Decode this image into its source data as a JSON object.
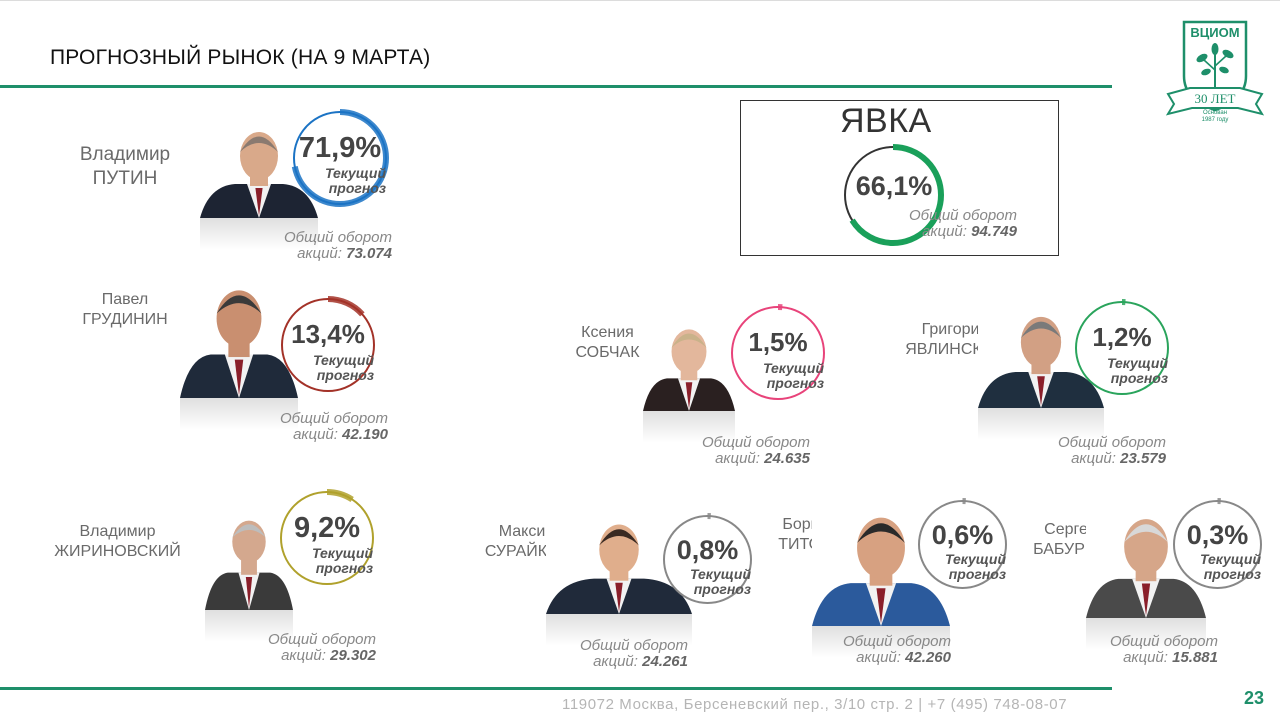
{
  "title": "ПРОГНОЗНЫЙ РЫНОК (НА 9 МАРТА)",
  "footer": {
    "address": "119072 Москва, Берсеневский пер., 3/10 стр. 2  |  +7 (495) 748-08-07",
    "page_number": "23"
  },
  "logo": {
    "name": "ВЦИОМ",
    "ribbon": "30 ЛЕТ",
    "founded": "Основан",
    "year": "1987 году"
  },
  "labels": {
    "current": "Текущий",
    "forecast": "прогноз",
    "turnover_line1": "Общий оборот",
    "turnover_line2_prefix": "акций:"
  },
  "turnout": {
    "title": "ЯВКА",
    "percent": "66,1%",
    "value": 0.661,
    "turnover_line1": "Общий оборот",
    "turnover_line2": "акций:",
    "turnover_value": "94.749",
    "color": "#1aa05a"
  },
  "candidates": [
    {
      "first": "Владимир",
      "last": "ПУТИН",
      "percent": "71,9%",
      "value": 0.719,
      "turnover": "73.074",
      "color": "#1b73c4"
    },
    {
      "first": "Павел",
      "last": "ГРУДИНИН",
      "percent": "13,4%",
      "value": 0.134,
      "turnover": "42.190",
      "color": "#a33228"
    },
    {
      "first": "Ксения",
      "last": "СОБЧАК",
      "percent": "1,5%",
      "value": 0.015,
      "turnover": "24.635",
      "color": "#e8437a"
    },
    {
      "first": "Григорий",
      "last": "ЯВЛИНСКИЙ",
      "percent": "1,2%",
      "value": 0.012,
      "turnover": "23.579",
      "color": "#2aa45c"
    },
    {
      "first": "Владимир",
      "last": "ЖИРИНОВСКИЙ",
      "percent": "9,2%",
      "value": 0.092,
      "turnover": "29.302",
      "color": "#b0a12c"
    },
    {
      "first": "Максим",
      "last": "СУРАЙКИН",
      "percent": "0,8%",
      "value": 0.008,
      "turnover": "24.261",
      "color": "#888888"
    },
    {
      "first": "Борис",
      "last": "ТИТОВ",
      "percent": "0,6%",
      "value": 0.006,
      "turnover": "42.260",
      "color": "#888888"
    },
    {
      "first": "Сергей",
      "last": "БАБУРИН",
      "percent": "0,3%",
      "value": 0.003,
      "turnover": "15.881",
      "color": "#888888"
    }
  ]
}
